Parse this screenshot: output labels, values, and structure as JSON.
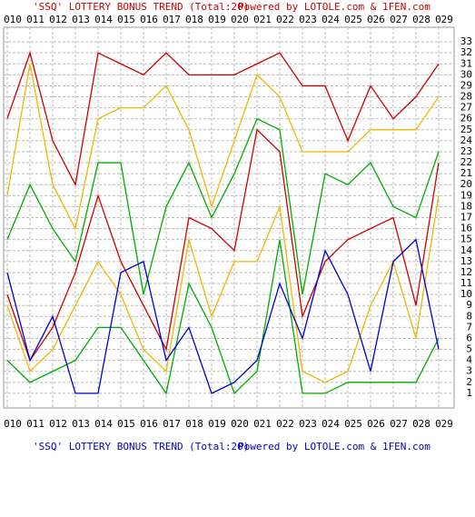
{
  "chart_data": {
    "type": "line",
    "title": "'SSQ' LOTTERY BONUS TREND (Total:20)",
    "credit": "Powered by LOTOLE.com & 1FEN.com",
    "categories": [
      "010",
      "011",
      "012",
      "013",
      "014",
      "015",
      "016",
      "017",
      "018",
      "019",
      "020",
      "021",
      "022",
      "023",
      "024",
      "025",
      "026",
      "027",
      "028",
      "029"
    ],
    "series": [
      {
        "color": "#cc0000",
        "values": [
          26,
          32,
          24,
          20,
          32,
          31,
          30,
          32,
          30,
          30,
          30,
          31,
          32,
          29,
          29,
          24,
          29,
          26,
          28,
          31
        ]
      },
      {
        "color": "#f0b800",
        "values": [
          19,
          31,
          20,
          16,
          26,
          27,
          27,
          29,
          25,
          18,
          24,
          30,
          28,
          23,
          23,
          23,
          25,
          25,
          25,
          28
        ]
      },
      {
        "color": "#00aa00",
        "values": [
          15,
          20,
          16,
          13,
          22,
          22,
          10,
          18,
          22,
          17,
          21,
          26,
          25,
          10,
          21,
          20,
          22,
          18,
          17,
          23
        ]
      },
      {
        "color": "#cc0000",
        "values": [
          10,
          4,
          7,
          12,
          19,
          13,
          9,
          5,
          17,
          16,
          14,
          25,
          23,
          8,
          13,
          15,
          16,
          17,
          9,
          22
        ]
      },
      {
        "color": "#f0b800",
        "values": [
          9,
          3,
          5,
          9,
          13,
          10,
          5,
          3,
          15,
          8,
          13,
          13,
          18,
          3,
          2,
          3,
          9,
          13,
          6,
          19
        ]
      },
      {
        "color": "#00aa00",
        "values": [
          4,
          2,
          3,
          4,
          7,
          7,
          4,
          1,
          11,
          7,
          1,
          3,
          15,
          1,
          1,
          2,
          2,
          2,
          2,
          6
        ]
      },
      {
        "color": "#0000cc",
        "values": [
          12,
          4,
          8,
          1,
          1,
          12,
          13,
          4,
          7,
          1,
          2,
          4,
          11,
          6,
          14,
          10,
          3,
          13,
          15,
          5
        ]
      }
    ],
    "ylim": [
      0,
      34
    ],
    "yticks": [
      1,
      2,
      3,
      4,
      5,
      6,
      7,
      8,
      9,
      10,
      11,
      12,
      13,
      14,
      15,
      16,
      17,
      18,
      19,
      20,
      21,
      22,
      23,
      24,
      25,
      26,
      27,
      28,
      29,
      30,
      31,
      32,
      33
    ],
    "grid": true
  }
}
